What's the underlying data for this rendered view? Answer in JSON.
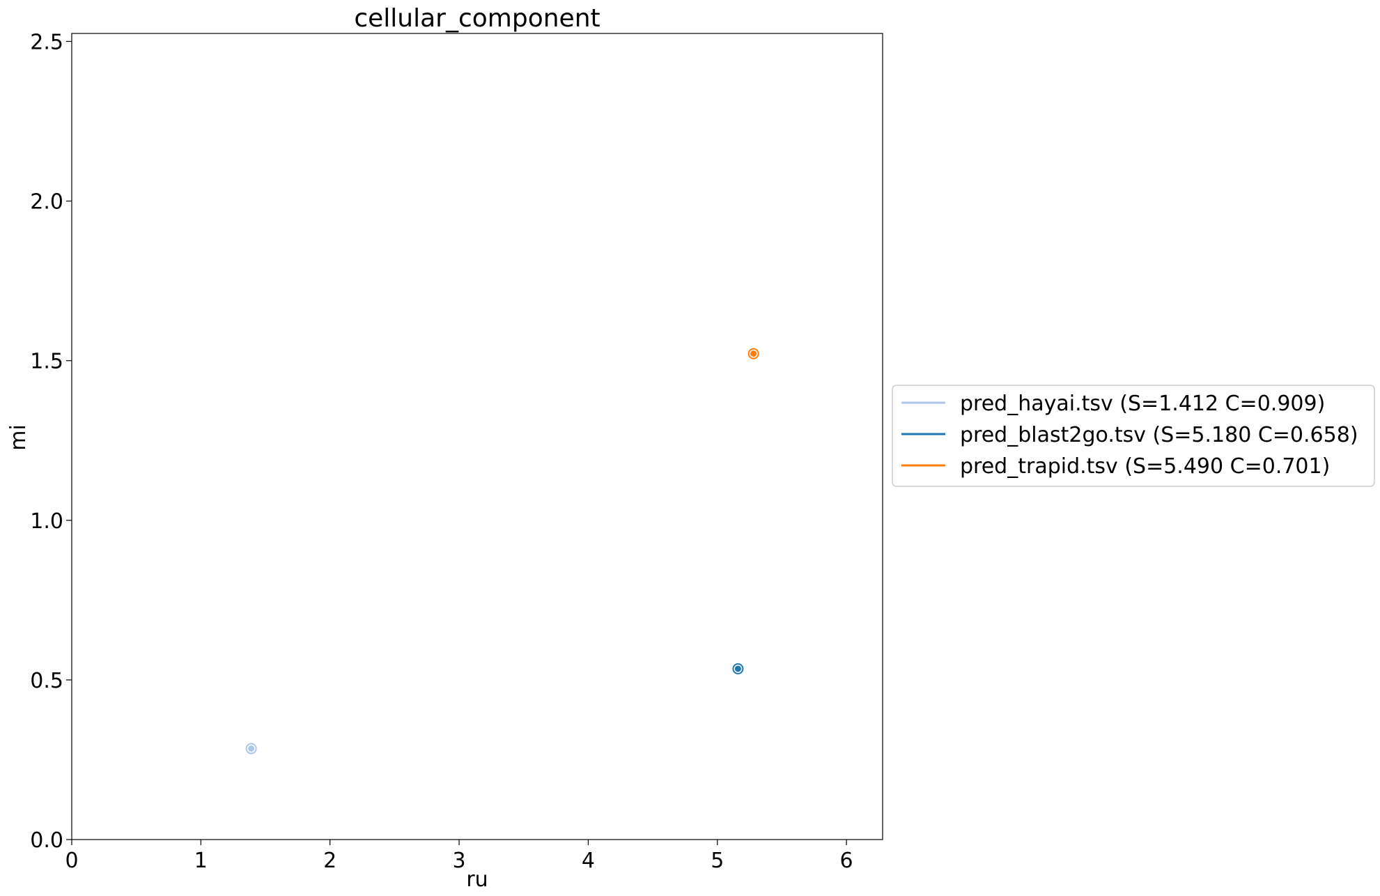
{
  "chart_data": {
    "type": "scatter",
    "title": "cellular_component",
    "xlabel": "ru",
    "ylabel": "mi",
    "xlim": [
      0,
      6.28
    ],
    "ylim": [
      0,
      2.525
    ],
    "xticks": [
      0,
      1,
      2,
      3,
      4,
      5,
      6
    ],
    "xtick_labels": [
      "0",
      "1",
      "2",
      "3",
      "4",
      "5",
      "6"
    ],
    "yticks": [
      0.0,
      0.5,
      1.0,
      1.5,
      2.0,
      2.5
    ],
    "ytick_labels": [
      "0.0",
      "0.5",
      "1.0",
      "1.5",
      "2.0",
      "2.5"
    ],
    "grid": false,
    "legend_position": "right, outside plot",
    "series": [
      {
        "name": "pred_hayai.tsv (S=1.412 C=0.909)",
        "color": "#aec7e8",
        "x": [
          1.39
        ],
        "y": [
          0.285
        ]
      },
      {
        "name": "pred_blast2go.tsv (S=5.180 C=0.658)",
        "color": "#1f77b4",
        "x": [
          5.16
        ],
        "y": [
          0.535
        ]
      },
      {
        "name": "pred_trapid.tsv (S=5.490 C=0.701)",
        "color": "#ff7f0e",
        "x": [
          5.28
        ],
        "y": [
          1.522
        ]
      }
    ]
  }
}
